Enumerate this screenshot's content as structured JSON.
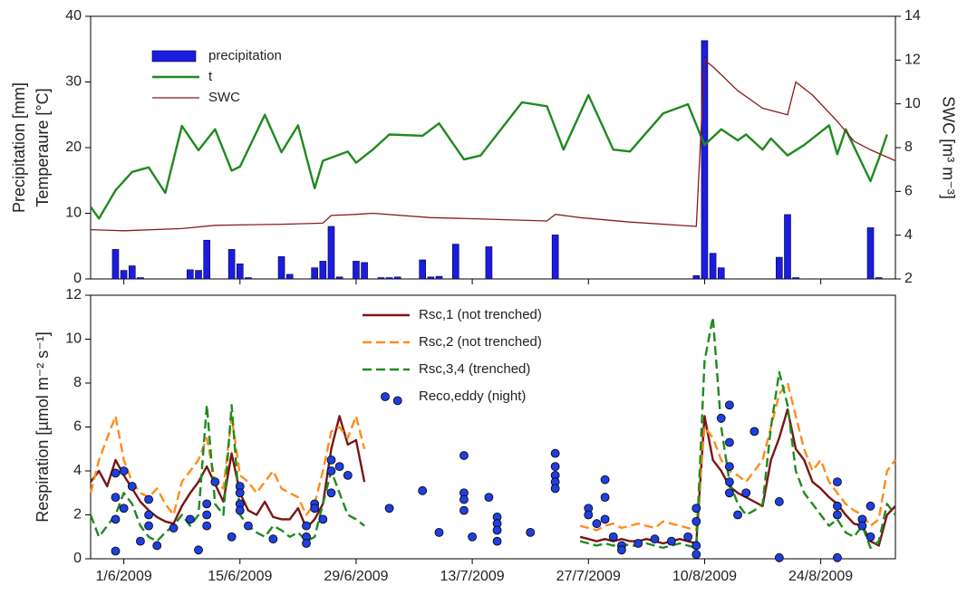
{
  "chart_data": [
    {
      "type": "combo",
      "ylabel": [
        "Precipitation [mm]",
        "Temperaure [°C]"
      ],
      "y2label": "SWC [m³ m⁻³]",
      "xlim": [
        "28/5/2009",
        "2/9/2009"
      ],
      "ylim": [
        0,
        40
      ],
      "yticks": [
        0,
        10,
        20,
        30,
        40
      ],
      "y2lim": [
        2,
        14
      ],
      "y2ticks": [
        2,
        4,
        6,
        8,
        10,
        12,
        14
      ],
      "legend": "upper left",
      "series": [
        {
          "name": "precipitation",
          "type": "bar",
          "color": "#1c1ce0",
          "x": [
            "31/5/2009",
            "1/6/2009",
            "2/6/2009",
            "3/6/2009",
            "9/6/2009",
            "10/6/2009",
            "11/6/2009",
            "14/6/2009",
            "15/6/2009",
            "16/6/2009",
            "20/6/2009",
            "21/6/2009",
            "24/6/2009",
            "25/6/2009",
            "26/6/2009",
            "27/6/2009",
            "29/6/2009",
            "30/6/2009",
            "2/7/2009",
            "3/7/2009",
            "4/7/2009",
            "7/7/2009",
            "8/7/2009",
            "9/7/2009",
            "11/7/2009",
            "15/7/2009",
            "23/7/2009",
            "9/8/2009",
            "10/8/2009",
            "11/8/2009",
            "12/8/2009",
            "19/8/2009",
            "20/8/2009",
            "21/8/2009",
            "30/8/2009",
            "31/8/2009"
          ],
          "values": [
            4.5,
            1.3,
            2.0,
            0.2,
            1.4,
            1.3,
            5.9,
            4.5,
            2.3,
            0.2,
            3.4,
            0.7,
            1.7,
            2.7,
            8.0,
            0.3,
            2.7,
            2.5,
            0.2,
            0.2,
            0.3,
            2.9,
            0.3,
            0.4,
            5.3,
            4.9,
            6.7,
            0.5,
            36.3,
            3.9,
            1.7,
            3.3,
            9.8,
            0.2,
            7.8,
            0.2
          ]
        },
        {
          "name": "t",
          "type": "line",
          "color": "#1e8a1e",
          "x": [
            "28/5/2009",
            "29/5/2009",
            "31/5/2009",
            "2/6/2009",
            "4/6/2009",
            "6/6/2009",
            "8/6/2009",
            "10/6/2009",
            "12/6/2009",
            "14/6/2009",
            "15/6/2009",
            "18/6/2009",
            "20/6/2009",
            "22/6/2009",
            "24/6/2009",
            "25/6/2009",
            "28/6/2009",
            "29/6/2009",
            "1/7/2009",
            "3/7/2009",
            "7/7/2009",
            "9/7/2009",
            "12/7/2009",
            "14/7/2009",
            "19/7/2009",
            "22/7/2009",
            "24/7/2009",
            "27/7/2009",
            "30/7/2009",
            "1/8/2009",
            "5/8/2009",
            "8/8/2009",
            "10/8/2009",
            "12/8/2009",
            "14/8/2009",
            "15/8/2009",
            "17/8/2009",
            "18/8/2009",
            "20/8/2009",
            "22/8/2009",
            "25/8/2009",
            "26/8/2009",
            "27/8/2009",
            "30/8/2009",
            "31/8/2009",
            "1/9/2009"
          ],
          "values": [
            11,
            9.2,
            13.5,
            16.3,
            17,
            13.1,
            23.3,
            19.6,
            22.8,
            16.5,
            17.1,
            25,
            19.3,
            23.4,
            13.8,
            18,
            19.4,
            17.7,
            19.7,
            22,
            21.8,
            23.7,
            18.2,
            18.8,
            26.9,
            26.3,
            19.7,
            28,
            19.7,
            19.4,
            25.2,
            26.6,
            20.4,
            22.8,
            21.1,
            22,
            19.7,
            21.4,
            18.8,
            20.4,
            23.4,
            19,
            22.8,
            14.9,
            18.3,
            22
          ]
        },
        {
          "name": "SWC",
          "type": "line",
          "axis": "y2",
          "color": "#8b1a1a",
          "width": 1.3,
          "x": [
            "28/5/2009",
            "1/6/2009",
            "8/6/2009",
            "12/6/2009",
            "20/6/2009",
            "25/6/2009",
            "26/6/2009",
            "29/6/2009",
            "1/7/2009",
            "8/7/2009",
            "13/7/2009",
            "22/7/2009",
            "23/7/2009",
            "26/7/2009",
            "1/8/2009",
            "9/8/2009",
            "10/8/2009",
            "11/8/2009",
            "14/8/2009",
            "17/8/2009",
            "20/8/2009",
            "21/8/2009",
            "23/8/2009",
            "26/8/2009",
            "28/8/2009",
            "30/8/2009",
            "2/9/2009"
          ],
          "values": [
            4.25,
            4.2,
            4.3,
            4.45,
            4.5,
            4.55,
            4.9,
            4.95,
            5.0,
            4.8,
            4.75,
            4.65,
            4.95,
            4.8,
            4.6,
            4.4,
            12.0,
            11.7,
            10.6,
            9.8,
            9.5,
            11.0,
            10.4,
            9.2,
            8.3,
            7.9,
            7.4
          ]
        }
      ]
    },
    {
      "type": "combo",
      "ylabel": "Respiration [µmol m⁻² s⁻¹]",
      "xlim": [
        "28/5/2009",
        "2/9/2009"
      ],
      "xticks": [
        "1/6/2009",
        "15/6/2009",
        "29/6/2009",
        "13/7/2009",
        "27/7/2009",
        "10/8/2009",
        "24/8/2009"
      ],
      "ylim": [
        0,
        12
      ],
      "yticks": [
        0,
        2,
        4,
        6,
        8,
        10,
        12
      ],
      "legend": "upper center",
      "x": [
        "28/5/2009",
        "29/5/2009",
        "30/5/2009",
        "31/5/2009",
        "1/6/2009",
        "2/6/2009",
        "3/6/2009",
        "4/6/2009",
        "5/6/2009",
        "6/6/2009",
        "7/6/2009",
        "8/6/2009",
        "9/6/2009",
        "10/6/2009",
        "11/6/2009",
        "12/6/2009",
        "13/6/2009",
        "14/6/2009",
        "15/6/2009",
        "16/6/2009",
        "17/6/2009",
        "18/6/2009",
        "19/6/2009",
        "20/6/2009",
        "21/6/2009",
        "22/6/2009",
        "23/6/2009",
        "24/6/2009",
        "25/6/2009",
        "26/6/2009",
        "27/6/2009",
        "28/6/2009",
        "29/6/2009",
        "30/6/2009",
        "1/7/2009",
        "26/7/2009",
        "27/7/2009",
        "28/7/2009",
        "29/7/2009",
        "30/7/2009",
        "31/7/2009",
        "1/8/2009",
        "2/8/2009",
        "3/8/2009",
        "4/8/2009",
        "5/8/2009",
        "6/8/2009",
        "7/8/2009",
        "8/8/2009",
        "9/8/2009",
        "10/8/2009",
        "11/8/2009",
        "12/8/2009",
        "13/8/2009",
        "14/8/2009",
        "15/8/2009",
        "16/8/2009",
        "17/8/2009",
        "18/8/2009",
        "19/8/2009",
        "20/8/2009",
        "21/8/2009",
        "22/8/2009",
        "23/8/2009",
        "24/8/2009",
        "25/8/2009",
        "26/8/2009",
        "27/8/2009",
        "28/8/2009",
        "29/8/2009",
        "30/8/2009",
        "31/8/2009",
        "1/9/2009",
        "2/9/2009"
      ],
      "series": [
        {
          "name": "Rsc,1 (not trenched)",
          "type": "line",
          "color": "#7a1515",
          "linestyle": "solid",
          "values": [
            3.5,
            4.0,
            3.3,
            4.5,
            3.8,
            3.2,
            2.6,
            2.2,
            1.9,
            1.7,
            1.6,
            2.4,
            3.0,
            3.5,
            4.2,
            3.4,
            2.6,
            4.8,
            3.0,
            2.2,
            2.0,
            2.6,
            1.9,
            1.8,
            1.8,
            2.3,
            1.4,
            1.8,
            2.5,
            5.0,
            6.5,
            5.2,
            5.4,
            3.5,
            null,
            1.0,
            0.9,
            0.8,
            0.9,
            0.8,
            0.9,
            0.8,
            0.8,
            0.9,
            0.8,
            0.7,
            0.8,
            0.9,
            0.8,
            0.7,
            6.5,
            4.5,
            4.0,
            3.3,
            3.0,
            2.8,
            2.6,
            2.4,
            4.5,
            5.5,
            6.8,
            5.0,
            4.5,
            3.5,
            3.2,
            2.8,
            2.5,
            2.0,
            1.6,
            1.5,
            0.8,
            0.6,
            2.0,
            2.4
          ]
        },
        {
          "name": "Rsc,2 (not trenched)",
          "type": "line",
          "color": "#ff8c1a",
          "linestyle": "dashed",
          "values": [
            3.0,
            4.5,
            5.5,
            6.5,
            4.5,
            3.5,
            3.0,
            2.8,
            3.2,
            2.5,
            2.0,
            3.5,
            4.0,
            4.5,
            5.5,
            3.5,
            3.2,
            6.5,
            3.8,
            3.5,
            3.0,
            3.5,
            4.0,
            3.2,
            3.0,
            2.8,
            2.0,
            2.5,
            4.0,
            5.8,
            6.0,
            5.5,
            6.5,
            5.0,
            null,
            1.5,
            1.4,
            1.3,
            1.5,
            1.6,
            1.4,
            1.5,
            1.6,
            1.5,
            1.4,
            1.7,
            1.6,
            1.5,
            1.4,
            1.3,
            6.0,
            5.5,
            4.5,
            4.0,
            3.8,
            3.5,
            4.0,
            4.5,
            6.0,
            7.5,
            8.0,
            6.5,
            5.0,
            4.0,
            4.5,
            3.5,
            3.0,
            2.5,
            2.2,
            2.0,
            1.5,
            1.8,
            4.0,
            4.5
          ]
        },
        {
          "name": "Rsc,3,4 (trenched)",
          "type": "line",
          "color": "#1f8a1f",
          "linestyle": "dashed",
          "values": [
            2.0,
            1.0,
            1.5,
            2.0,
            3.0,
            2.5,
            1.5,
            1.0,
            0.8,
            1.2,
            1.5,
            2.0,
            1.5,
            2.0,
            7.0,
            2.5,
            2.0,
            7.0,
            2.0,
            1.5,
            1.2,
            1.0,
            1.5,
            1.3,
            1.0,
            1.2,
            0.8,
            1.0,
            2.5,
            4.0,
            3.0,
            2.0,
            1.8,
            1.5,
            null,
            0.8,
            0.7,
            0.6,
            0.7,
            0.6,
            0.7,
            0.6,
            0.6,
            0.7,
            0.6,
            0.5,
            0.6,
            0.7,
            0.6,
            0.5,
            9.0,
            11.0,
            6.0,
            3.5,
            2.5,
            2.0,
            2.2,
            2.5,
            6.0,
            8.5,
            7.0,
            4.0,
            3.0,
            2.5,
            2.0,
            1.5,
            1.8,
            1.2,
            1.0,
            1.5,
            0.5,
            0.8,
            2.5,
            2.0
          ]
        },
        {
          "name": "Reco,eddy (night)",
          "type": "scatter",
          "color": "#1f3fdf",
          "x": [
            "31/5/2009",
            "31/5/2009",
            "31/5/2009",
            "31/5/2009",
            "1/6/2009",
            "1/6/2009",
            "2/6/2009",
            "3/6/2009",
            "4/6/2009",
            "4/6/2009",
            "4/6/2009",
            "5/6/2009",
            "7/6/2009",
            "9/6/2009",
            "10/6/2009",
            "11/6/2009",
            "11/6/2009",
            "11/6/2009",
            "12/6/2009",
            "14/6/2009",
            "15/6/2009",
            "15/6/2009",
            "15/6/2009",
            "15/6/2009",
            "16/6/2009",
            "19/6/2009",
            "23/6/2009",
            "23/6/2009",
            "23/6/2009",
            "24/6/2009",
            "24/6/2009",
            "25/6/2009",
            "26/6/2009",
            "26/6/2009",
            "26/6/2009",
            "27/6/2009",
            "28/6/2009",
            "3/7/2009",
            "4/7/2009",
            "7/7/2009",
            "9/7/2009",
            "12/7/2009",
            "12/7/2009",
            "12/7/2009",
            "12/7/2009",
            "13/7/2009",
            "15/7/2009",
            "16/7/2009",
            "16/7/2009",
            "16/7/2009",
            "16/7/2009",
            "20/7/2009",
            "23/7/2009",
            "23/7/2009",
            "23/7/2009",
            "23/7/2009",
            "23/7/2009",
            "27/7/2009",
            "27/7/2009",
            "28/7/2009",
            "29/7/2009",
            "29/7/2009",
            "29/7/2009",
            "30/7/2009",
            "31/7/2009",
            "31/7/2009",
            "2/8/2009",
            "4/8/2009",
            "6/8/2009",
            "8/8/2009",
            "9/8/2009",
            "9/8/2009",
            "9/8/2009",
            "9/8/2009",
            "12/8/2009",
            "13/8/2009",
            "13/8/2009",
            "13/8/2009",
            "13/8/2009",
            "13/8/2009",
            "14/8/2009",
            "15/8/2009",
            "16/8/2009",
            "19/8/2009",
            "19/8/2009",
            "26/8/2009",
            "26/8/2009",
            "26/8/2009",
            "26/8/2009",
            "29/8/2009",
            "29/8/2009",
            "30/8/2009",
            "30/8/2009"
          ],
          "values": [
            0.35,
            1.8,
            2.8,
            3.9,
            4.0,
            2.3,
            3.3,
            0.8,
            2.7,
            2.0,
            1.5,
            0.6,
            1.4,
            1.8,
            0.4,
            2.5,
            2.0,
            1.5,
            3.5,
            1.0,
            3.3,
            3.0,
            2.5,
            2.2,
            1.5,
            0.9,
            1.5,
            1.0,
            0.7,
            2.5,
            2.3,
            1.8,
            4.5,
            4.0,
            3.0,
            4.2,
            3.8,
            2.3,
            7.2,
            3.1,
            1.2,
            4.7,
            3.0,
            2.7,
            2.2,
            1.0,
            2.8,
            1.9,
            1.6,
            1.3,
            0.8,
            1.2,
            4.8,
            4.2,
            3.8,
            3.5,
            3.2,
            2.3,
            2.0,
            1.6,
            3.6,
            2.8,
            1.8,
            1.0,
            0.6,
            0.4,
            0.7,
            0.9,
            0.8,
            1.0,
            2.3,
            1.7,
            0.6,
            0.2,
            6.4,
            7.0,
            5.3,
            4.2,
            3.5,
            3.0,
            2.0,
            3.0,
            5.8,
            2.6,
            0.05,
            3.5,
            2.4,
            2.0,
            0.05,
            1.8,
            1.5,
            2.4,
            1.0
          ]
        }
      ]
    }
  ]
}
